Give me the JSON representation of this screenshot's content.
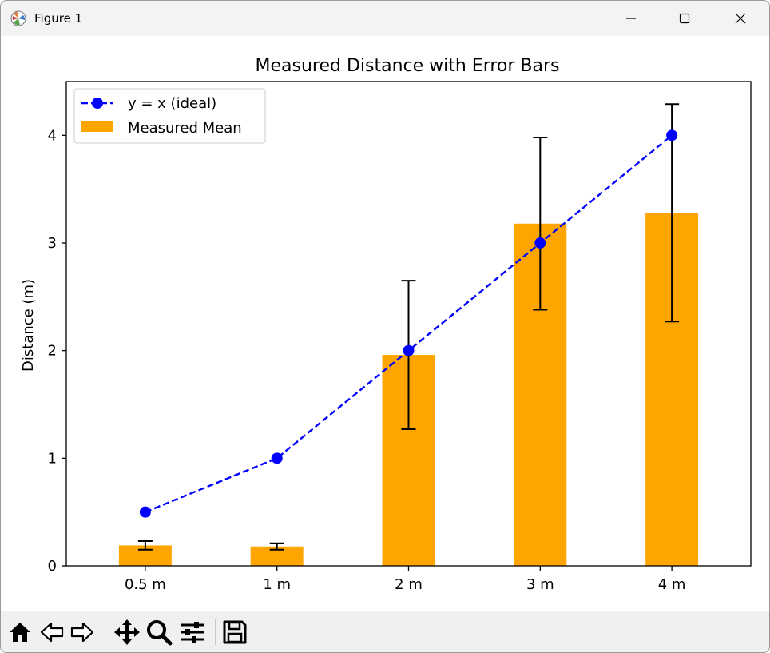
{
  "window": {
    "title": "Figure 1",
    "icons": {
      "app": "matplotlib-logo-icon",
      "minimize": "minimize-icon",
      "maximize": "maximize-icon",
      "close": "close-icon"
    }
  },
  "toolbar": {
    "tools": [
      {
        "name": "home-icon"
      },
      {
        "name": "back-arrow-icon"
      },
      {
        "name": "forward-arrow-icon"
      },
      {
        "name": "pan-icon"
      },
      {
        "name": "zoom-icon"
      },
      {
        "name": "configure-subplots-icon"
      },
      {
        "name": "save-icon"
      }
    ]
  },
  "chart_data": {
    "type": "bar",
    "title": "Measured Distance with Error Bars",
    "xlabel": "",
    "ylabel": "Distance (m)",
    "categories": [
      "0.5 m",
      "1 m",
      "2 m",
      "3 m",
      "4 m"
    ],
    "ylim": [
      0,
      4.5
    ],
    "yticks": [
      0,
      1,
      2,
      3,
      4
    ],
    "grid": false,
    "legend_position": "top-left",
    "series": [
      {
        "name": "Measured Mean",
        "kind": "bar",
        "color": "#ffa500",
        "values": [
          0.19,
          0.18,
          1.96,
          3.18,
          3.28
        ],
        "errors": [
          0.04,
          0.03,
          0.69,
          0.8,
          1.01
        ]
      },
      {
        "name": "y = x (ideal)",
        "kind": "line",
        "color": "#0000ff",
        "linestyle": "dashed",
        "marker": "circle",
        "values": [
          0.5,
          1,
          2,
          3,
          4
        ]
      }
    ]
  }
}
